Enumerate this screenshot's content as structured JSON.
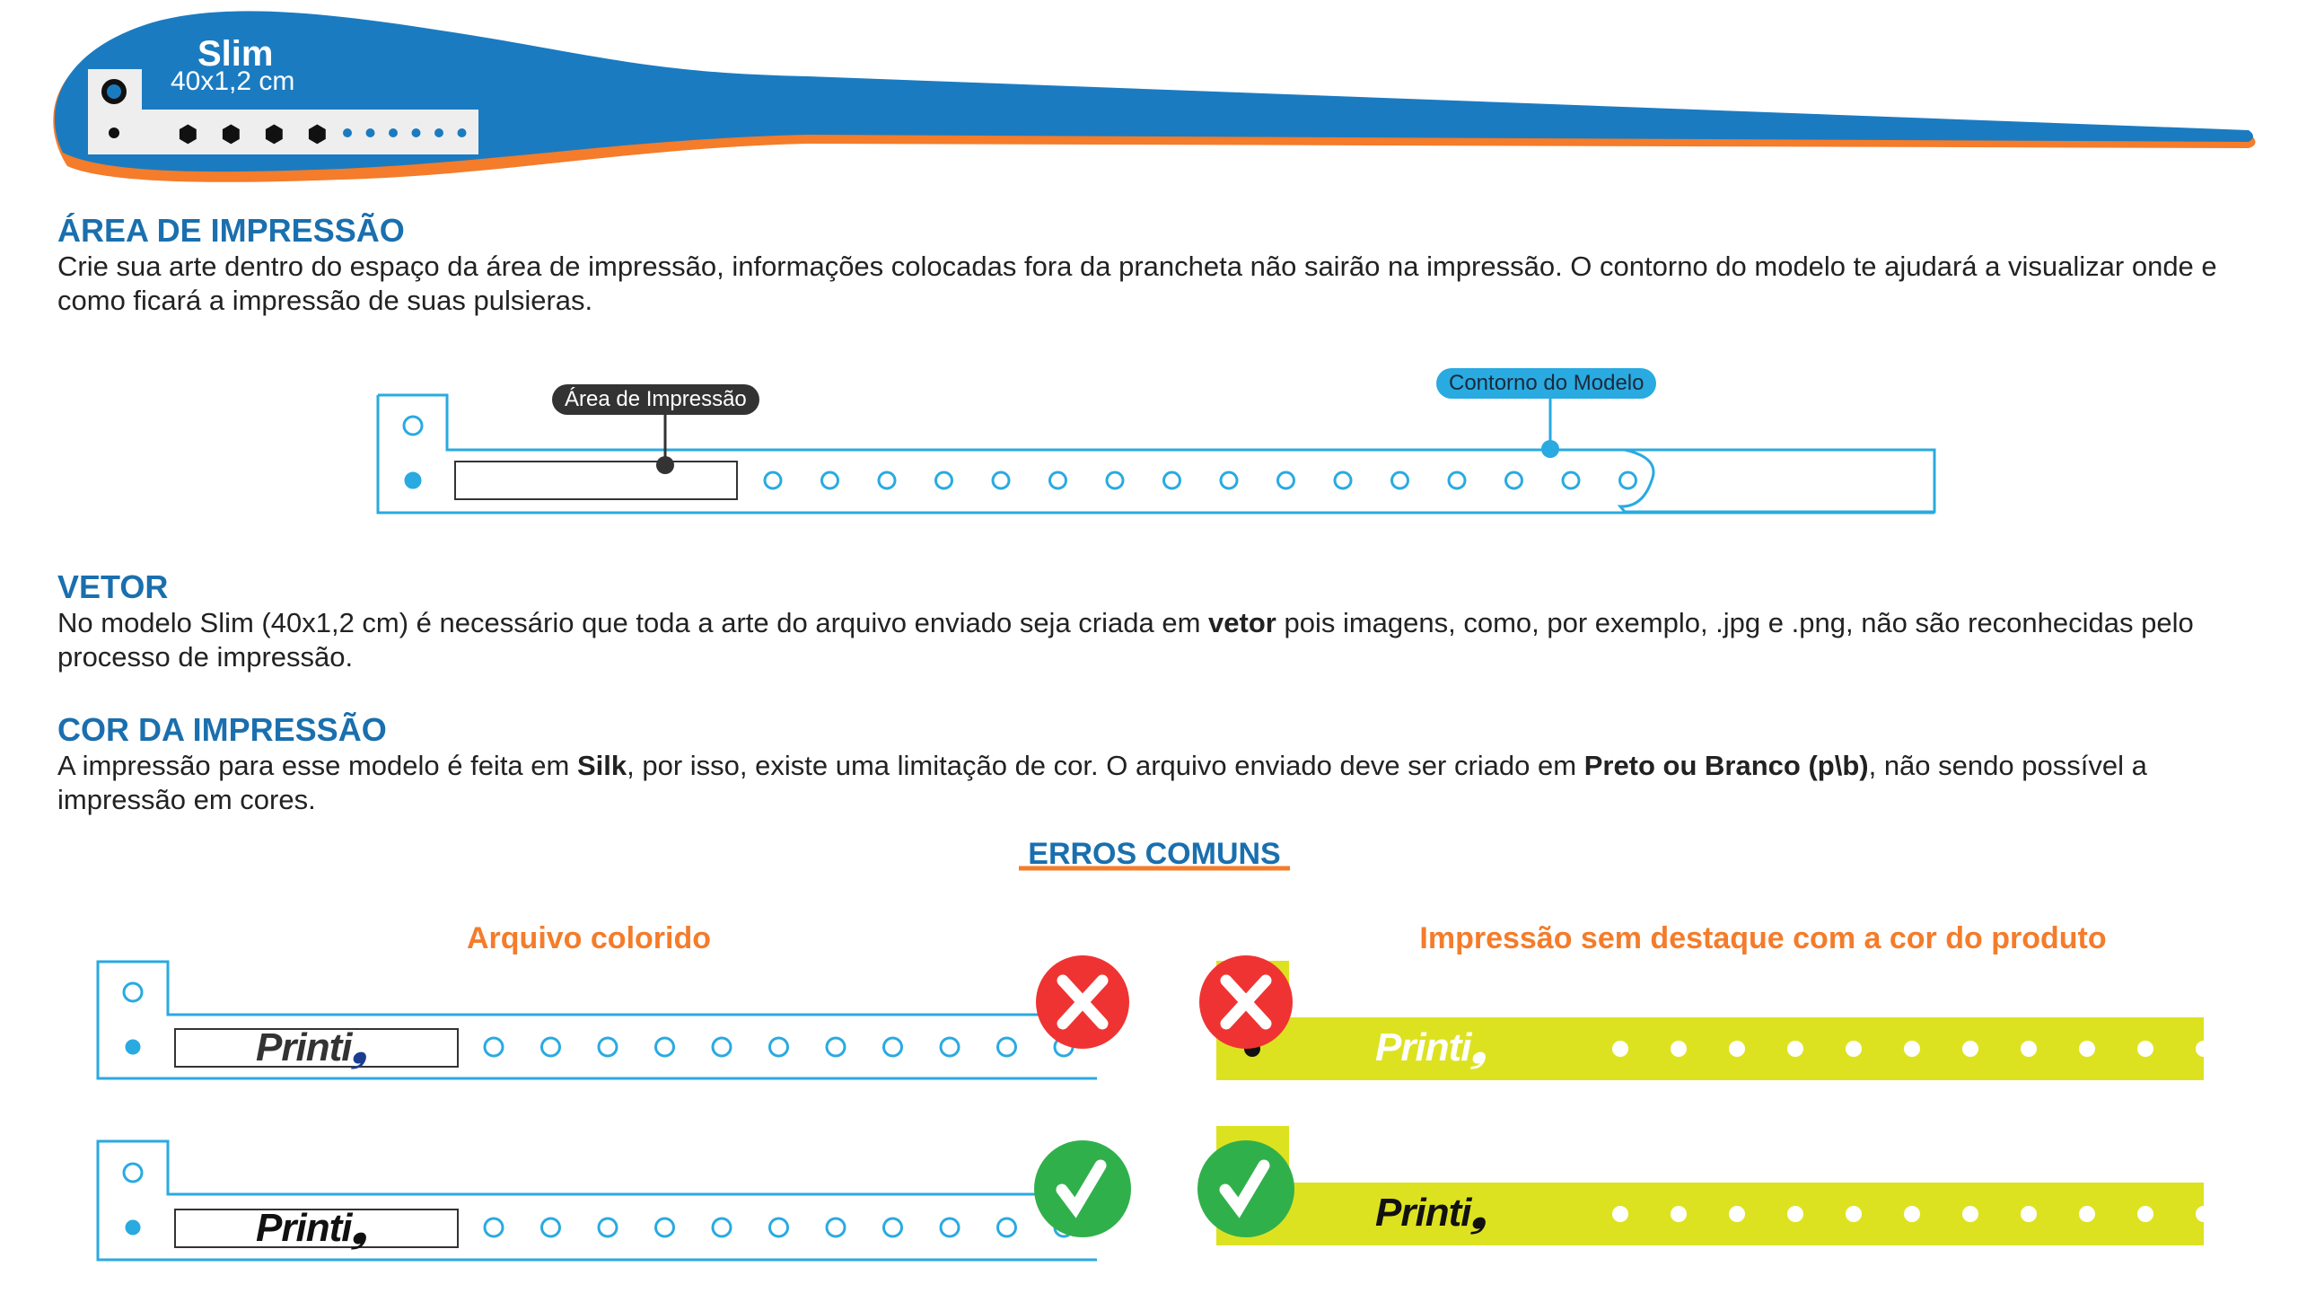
{
  "header": {
    "title": "Slim",
    "size": "40x1,2 cm",
    "colors": {
      "blue": "#1b7bc1",
      "orange": "#f47c2a"
    }
  },
  "sections": [
    {
      "title": "ÁREA DE IMPRESSÃO",
      "text": "Crie sua arte dentro do espaço da área de impressão, informações colocadas fora da prancheta não sairão na impressão. O contorno do modelo te ajudará a visualizar onde e como ficará a impressão de suas pulsieras."
    },
    {
      "title": "VETOR",
      "text_before": "No modelo Slim (40x1,2 cm) é necessário que toda a arte do arquivo enviado seja criada em ",
      "bold": "vetor",
      "text_after": " pois imagens, como, por exemplo, .jpg e .png, não são reconhecidas pelo processo de impressão."
    },
    {
      "title": "COR DA IMPRESSÃO",
      "text_1": "A impressão para esse modelo é feita em ",
      "bold_1": "Silk",
      "text_2": ", por isso, existe uma limitação de cor. O arquivo enviado deve ser criado em ",
      "bold_2": "Preto ou Branco (p\\b)",
      "text_3": ", não sendo possível a impressão em cores."
    }
  ],
  "diagram": {
    "print_area_label": "Área de Impressão",
    "outline_label": "Contorno do Modelo",
    "outline_color": "#29aae1",
    "label_dark": "#333333"
  },
  "errors": {
    "title": "ERROS COMUNS",
    "left_title": "Arquivo colorido",
    "right_title": "Impressão sem destaque com a cor do produto",
    "logo_text": "Printi",
    "wrong_icon": "x-mark-icon",
    "right_icon": "check-mark-icon",
    "colors": {
      "wrong": "#ef3333",
      "right": "#30b04b",
      "yellow": "#dde220",
      "logo_blue": "#1b3d8f"
    }
  }
}
